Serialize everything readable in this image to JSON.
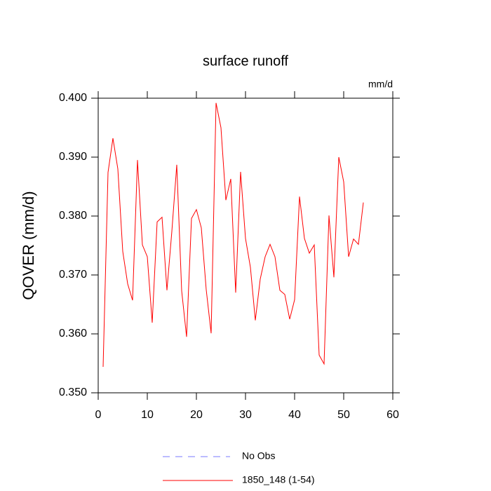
{
  "chart_data": {
    "type": "line",
    "title": "surface runoff",
    "units_label": "mm/d",
    "y_label": "QOVER  (mm/d)",
    "x": [
      1,
      2,
      3,
      4,
      5,
      6,
      7,
      8,
      9,
      10,
      11,
      12,
      13,
      14,
      15,
      16,
      17,
      18,
      19,
      20,
      21,
      22,
      23,
      24,
      25,
      26,
      27,
      28,
      29,
      30,
      31,
      32,
      33,
      34,
      35,
      36,
      37,
      38,
      39,
      40,
      41,
      42,
      43,
      44,
      45,
      46,
      47,
      48,
      49,
      50,
      51,
      52,
      53,
      54
    ],
    "series": [
      {
        "name": "1850_148 (1-54)",
        "color": "#ff0000",
        "values": [
          0.3544,
          0.3874,
          0.3932,
          0.388,
          0.374,
          0.3685,
          0.3657,
          0.3895,
          0.3751,
          0.3731,
          0.3619,
          0.379,
          0.3798,
          0.3674,
          0.3774,
          0.3887,
          0.3673,
          0.3595,
          0.3796,
          0.3811,
          0.378,
          0.3675,
          0.3601,
          0.3992,
          0.395,
          0.3827,
          0.3863,
          0.367,
          0.3875,
          0.3762,
          0.3713,
          0.3623,
          0.3693,
          0.3731,
          0.3752,
          0.3731,
          0.3674,
          0.3667,
          0.3625,
          0.3658,
          0.3833,
          0.3762,
          0.3737,
          0.3751,
          0.3564,
          0.3549,
          0.3801,
          0.3696,
          0.39,
          0.3858,
          0.3731,
          0.3761,
          0.3752,
          0.3823
        ]
      }
    ],
    "reference": {
      "name": "No Obs",
      "color": "#7a7aff",
      "style": "dashed"
    },
    "xlim": [
      0,
      60
    ],
    "xticks": [
      0,
      10,
      20,
      30,
      40,
      50,
      60
    ],
    "ylim": [
      0.35,
      0.4
    ],
    "yticks": [
      {
        "value": 0.35,
        "label": "0.350"
      },
      {
        "value": 0.36,
        "label": "0.360"
      },
      {
        "value": 0.37,
        "label": "0.370"
      },
      {
        "value": 0.38,
        "label": "0.380"
      },
      {
        "value": 0.39,
        "label": "0.390"
      },
      {
        "value": 0.4,
        "label": "0.400"
      }
    ]
  }
}
